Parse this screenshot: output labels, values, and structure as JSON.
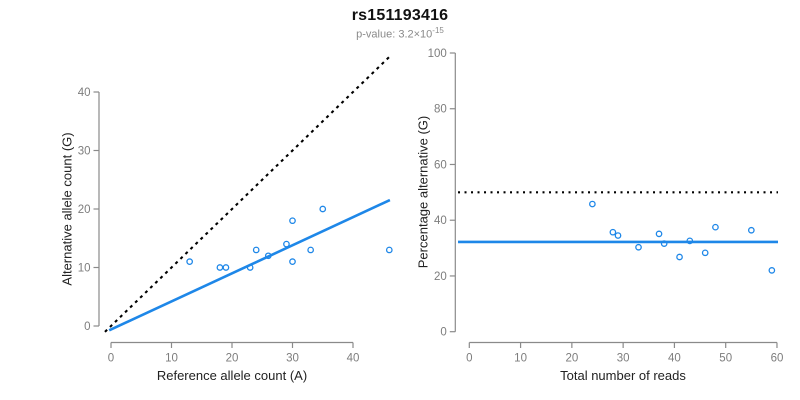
{
  "header": {
    "title": "rs151193416",
    "subtitle_prefix": "p-value: 3.2×10",
    "subtitle_exponent": "-15"
  },
  "colors": {
    "accent_blue": "#1E87E8",
    "axis_gray": "#8A8A8A",
    "tick_label_gray": "#7D7D7D",
    "title_black": "#111111",
    "subtitle_gray": "#8A8A8A",
    "line_black": "#000000"
  },
  "chart_data": [
    {
      "id": "allele-count-scatter",
      "type": "scatter",
      "xlabel": "Reference allele count (A)",
      "ylabel": "Alternative allele count (G)",
      "xticks": [
        0,
        10,
        20,
        30,
        40
      ],
      "yticks": [
        0,
        10,
        20,
        30,
        40
      ],
      "xlim": [
        -1.5,
        47
      ],
      "ylim": [
        -1.5,
        47
      ],
      "grid": false,
      "legend": "none",
      "marker": "open-circle",
      "points": [
        [
          13,
          11
        ],
        [
          18,
          10
        ],
        [
          19,
          10
        ],
        [
          23,
          10
        ],
        [
          24,
          13
        ],
        [
          26,
          12
        ],
        [
          29,
          14
        ],
        [
          30,
          11
        ],
        [
          30,
          18
        ],
        [
          33,
          13
        ],
        [
          35,
          20
        ],
        [
          46,
          13
        ]
      ],
      "lines": [
        {
          "name": "identity-line",
          "style": "dashed",
          "color": "black",
          "slope": 1,
          "intercept": 0,
          "span": [
            -1,
            46.4
          ]
        },
        {
          "name": "fit-line",
          "style": "solid",
          "color": "blue",
          "slope": 0.48,
          "intercept": -0.6,
          "span": [
            -0.3,
            46.1
          ]
        }
      ]
    },
    {
      "id": "percentage-vs-reads-scatter",
      "type": "scatter",
      "xlabel": "Total number of reads",
      "ylabel": "Percentage alternative (G)",
      "xticks": [
        0,
        10,
        20,
        30,
        40,
        50,
        60
      ],
      "yticks": [
        0,
        20,
        40,
        60,
        80,
        100
      ],
      "xlim": [
        -2.5,
        62.5
      ],
      "ylim": [
        0,
        100
      ],
      "grid": false,
      "legend": "none",
      "marker": "open-circle",
      "points": [
        [
          24,
          45.8
        ],
        [
          28,
          35.7
        ],
        [
          29,
          34.5
        ],
        [
          33,
          30.3
        ],
        [
          37,
          35.1
        ],
        [
          38,
          31.6
        ],
        [
          41,
          26.8
        ],
        [
          43,
          32.6
        ],
        [
          46,
          28.3
        ],
        [
          48,
          37.5
        ],
        [
          55,
          36.4
        ],
        [
          59,
          22.0
        ]
      ],
      "lines": [
        {
          "name": "expected-50pct-line",
          "style": "dotted",
          "color": "black",
          "slope": 0,
          "intercept": 50,
          "span": [
            -2.2,
            60.2
          ]
        },
        {
          "name": "mean-percentage-line",
          "style": "solid",
          "color": "blue",
          "slope": 0,
          "intercept": 32.2,
          "span": [
            -2.2,
            60.2
          ]
        }
      ]
    }
  ]
}
